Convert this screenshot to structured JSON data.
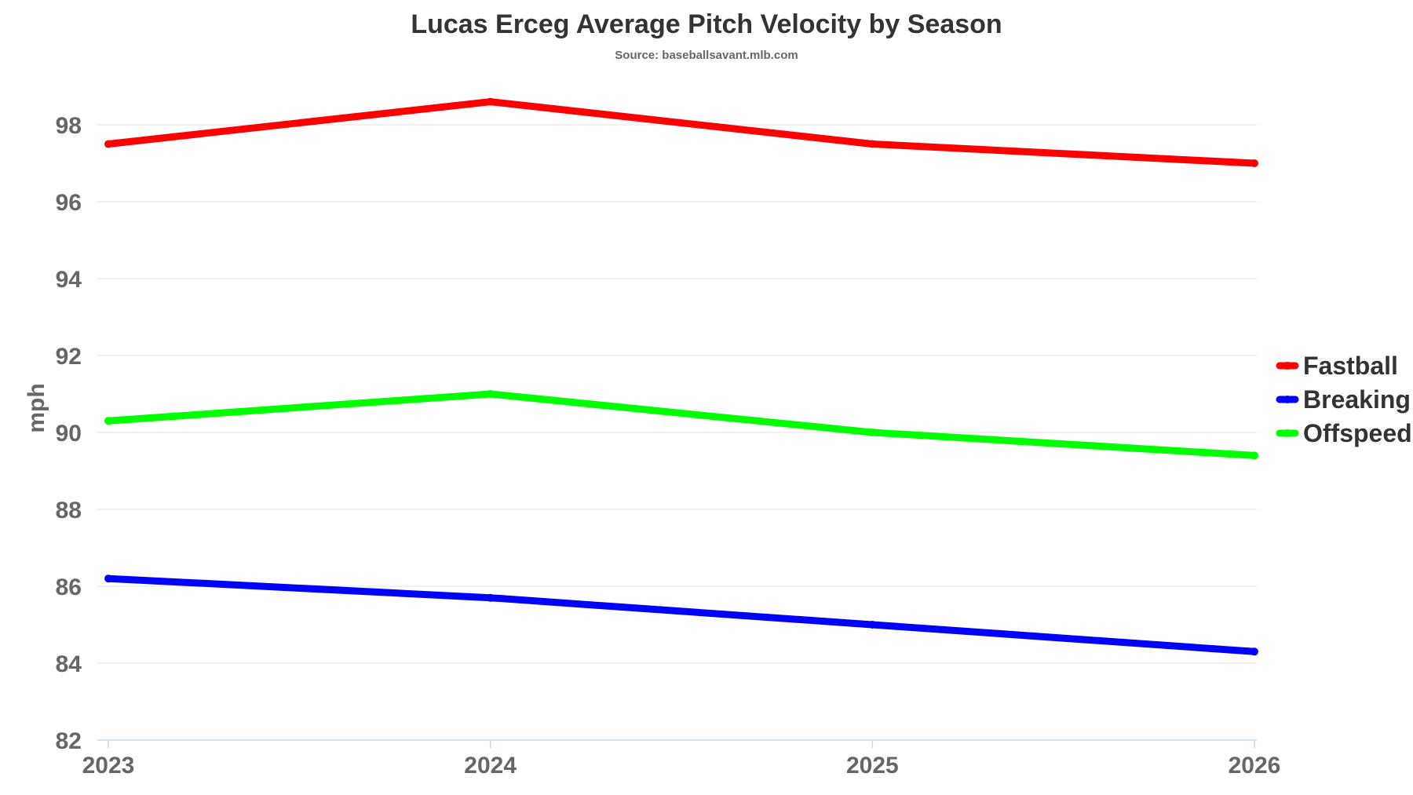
{
  "chart_data": {
    "type": "line",
    "title": "Lucas Erceg Average Pitch Velocity by Season",
    "subtitle": "Source: baseballsavant.mlb.com",
    "xlabel": "",
    "ylabel": "mph",
    "x": [
      "2023",
      "2024",
      "2025",
      "2026"
    ],
    "ylim": [
      82,
      99
    ],
    "yticks": [
      82,
      84,
      86,
      88,
      90,
      92,
      94,
      96,
      98
    ],
    "grid": true,
    "legend_position": "right",
    "series": [
      {
        "name": "Fastball",
        "color": "#ff0000",
        "values": [
          97.5,
          98.6,
          97.5,
          97.0
        ]
      },
      {
        "name": "Breaking",
        "color": "#0000ff",
        "values": [
          86.2,
          85.7,
          85.0,
          84.3
        ]
      },
      {
        "name": "Offspeed",
        "color": "#00ff00",
        "values": [
          90.3,
          91.0,
          90.0,
          89.4
        ]
      }
    ]
  }
}
